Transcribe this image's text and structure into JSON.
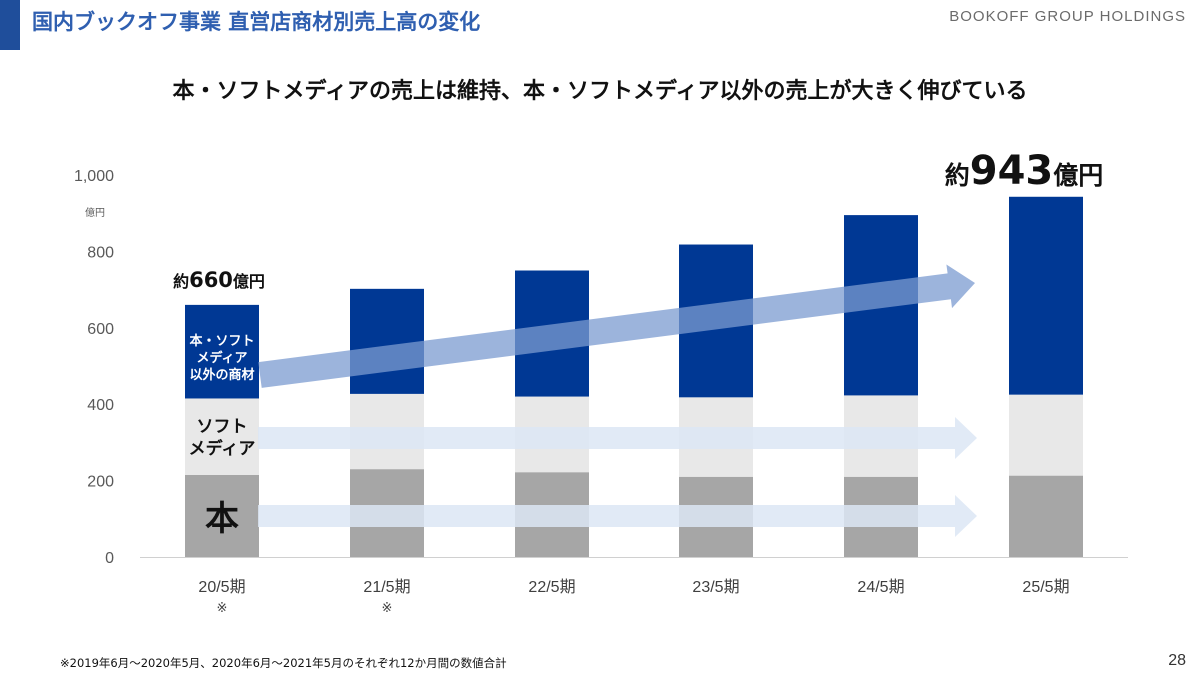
{
  "header": {
    "title": "国内ブックオフ事業 直営店商材別売上高の変化",
    "brand": "BOOKOFF GROUP HOLDINGS",
    "accent_color": "#1f4e9b"
  },
  "subtitle": "本・ソフトメディアの売上は維持、本・ソフトメディア以外の売上が大きく伸びている",
  "chart_data": {
    "type": "bar",
    "stacked": true,
    "unit": "億円",
    "categories": [
      "20/5期",
      "21/5期",
      "22/5期",
      "23/5期",
      "24/5期",
      "25/5期"
    ],
    "category_notes": [
      "※",
      "※",
      "",
      "",
      "",
      ""
    ],
    "series": [
      {
        "name": "本",
        "values": [
          215,
          230,
          222,
          210,
          210,
          213
        ],
        "color": "#a6a6a6"
      },
      {
        "name": "ソフトメディア",
        "values": [
          200,
          197,
          198,
          208,
          213,
          212
        ],
        "color": "#e8e8e8"
      },
      {
        "name": "本・ソフトメディア以外の商材",
        "values": [
          245,
          275,
          330,
          400,
          472,
          518
        ],
        "color": "#003894"
      }
    ],
    "y_ticks": [
      "0",
      "200",
      "400",
      "600",
      "800",
      "1,000"
    ],
    "y_tick_values": [
      0,
      200,
      400,
      600,
      800,
      1000
    ],
    "ylim": [
      0,
      1000
    ],
    "grid": false,
    "inline_labels": {
      "other": "本・ソフト\nメディア\n以外の商材",
      "soft": "ソフト\nメディア",
      "book": "本"
    },
    "annotations": {
      "first_total": {
        "prefix": "約",
        "value": "660",
        "suffix": "億円"
      },
      "last_total": {
        "prefix": "約",
        "value": "943",
        "suffix": "億円"
      }
    },
    "trend_arrows": {
      "other": {
        "color": "#7b9bd0"
      },
      "soft": {
        "color": "#dce6f5"
      },
      "book": {
        "color": "#dce6f5"
      }
    }
  },
  "footnote": "※2019年6月〜2020年5月、2020年6月〜2021年5月のそれぞれ12か月間の数値合計",
  "page_number": "28"
}
